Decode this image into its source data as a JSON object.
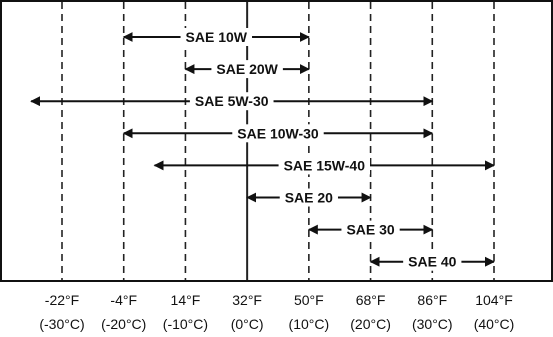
{
  "chart_data": {
    "type": "range-bar",
    "title": "",
    "xlabel": "",
    "ylabel": "",
    "temperatures": [
      {
        "f": "-22°F",
        "c": "(-30°C)",
        "value_f": -22
      },
      {
        "f": "-4°F",
        "c": "(-20°C)",
        "value_f": -4
      },
      {
        "f": "14°F",
        "c": "(-10°C)",
        "value_f": 14
      },
      {
        "f": "32°F",
        "c": "(0°C)",
        "value_f": 32
      },
      {
        "f": "50°F",
        "c": "(10°C)",
        "value_f": 50
      },
      {
        "f": "68°F",
        "c": "(20°C)",
        "value_f": 68
      },
      {
        "f": "86°F",
        "c": "(30°C)",
        "value_f": 86
      },
      {
        "f": "104°F",
        "c": "(40°C)",
        "value_f": 104
      }
    ],
    "solid_line_f": 32,
    "grades": [
      {
        "label": "SAE 10W",
        "min_f": -4,
        "max_f": 50
      },
      {
        "label": "SAE 20W",
        "min_f": 14,
        "max_f": 50
      },
      {
        "label": "SAE 5W-30",
        "min_f": -31,
        "max_f": 86
      },
      {
        "label": "SAE 10W-30",
        "min_f": -4,
        "max_f": 86
      },
      {
        "label": "SAE 15W-40",
        "min_f": 5,
        "max_f": 104
      },
      {
        "label": "SAE 20",
        "min_f": 32,
        "max_f": 68
      },
      {
        "label": "SAE 30",
        "min_f": 50,
        "max_f": 86
      },
      {
        "label": "SAE 40",
        "min_f": 68,
        "max_f": 104
      }
    ]
  }
}
